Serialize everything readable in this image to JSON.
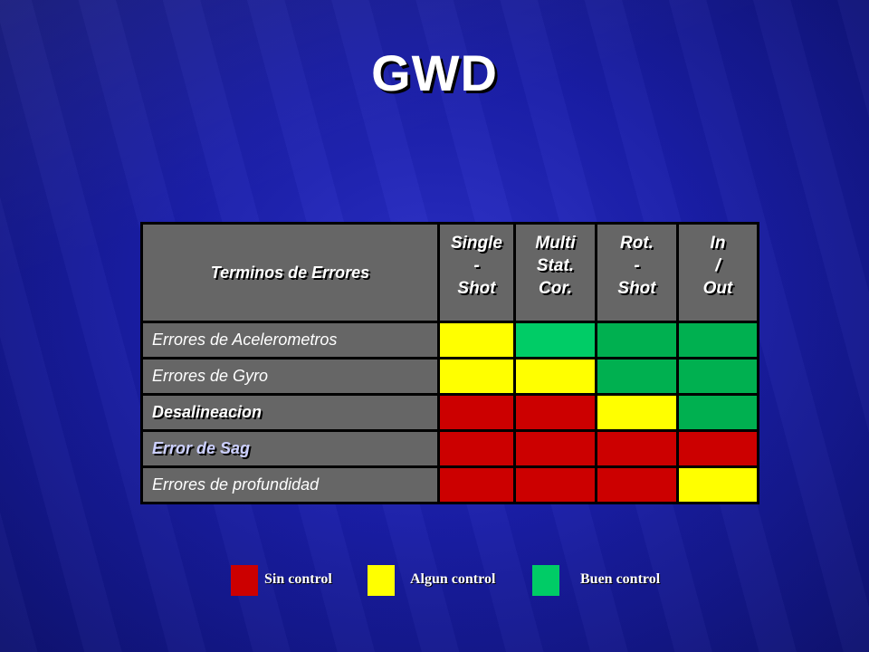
{
  "title": "GWD",
  "table": {
    "header": {
      "term": "Terminos de Errores",
      "columns": [
        {
          "lines": [
            "Single",
            "-",
            "Shot"
          ]
        },
        {
          "lines": [
            "Multi",
            "Stat.",
            "Cor."
          ]
        },
        {
          "lines": [
            "Rot.",
            "-",
            "Shot"
          ]
        },
        {
          "lines": [
            "In",
            "/",
            "Out"
          ]
        }
      ]
    },
    "rows": [
      {
        "label": "Errores de Acelerometros",
        "levels": [
          "algun",
          "buen",
          "buen",
          "buen"
        ]
      },
      {
        "label": "Errores de Gyro",
        "levels": [
          "algun",
          "algun",
          "buen",
          "buen"
        ]
      },
      {
        "label": "Desalineacion",
        "levels": [
          "sin",
          "sin",
          "algun",
          "buen"
        ]
      },
      {
        "label": "Error de Sag",
        "levels": [
          "sin",
          "sin",
          "sin",
          "sin"
        ]
      },
      {
        "label": "Errores de profundidad",
        "levels": [
          "sin",
          "sin",
          "sin",
          "algun"
        ]
      }
    ]
  },
  "legend": [
    {
      "key": "sin",
      "label": "Sin control",
      "color": "#cc0000"
    },
    {
      "key": "algun",
      "label": "Algun control",
      "color": "#ffff00"
    },
    {
      "key": "buen",
      "label": "Buen control",
      "color": "#00cc66"
    }
  ],
  "level_colors": {
    "sin": "#cc0000",
    "algun": "#ffff00",
    "buen": "#00b050",
    "buen_light": "#00cc66"
  }
}
